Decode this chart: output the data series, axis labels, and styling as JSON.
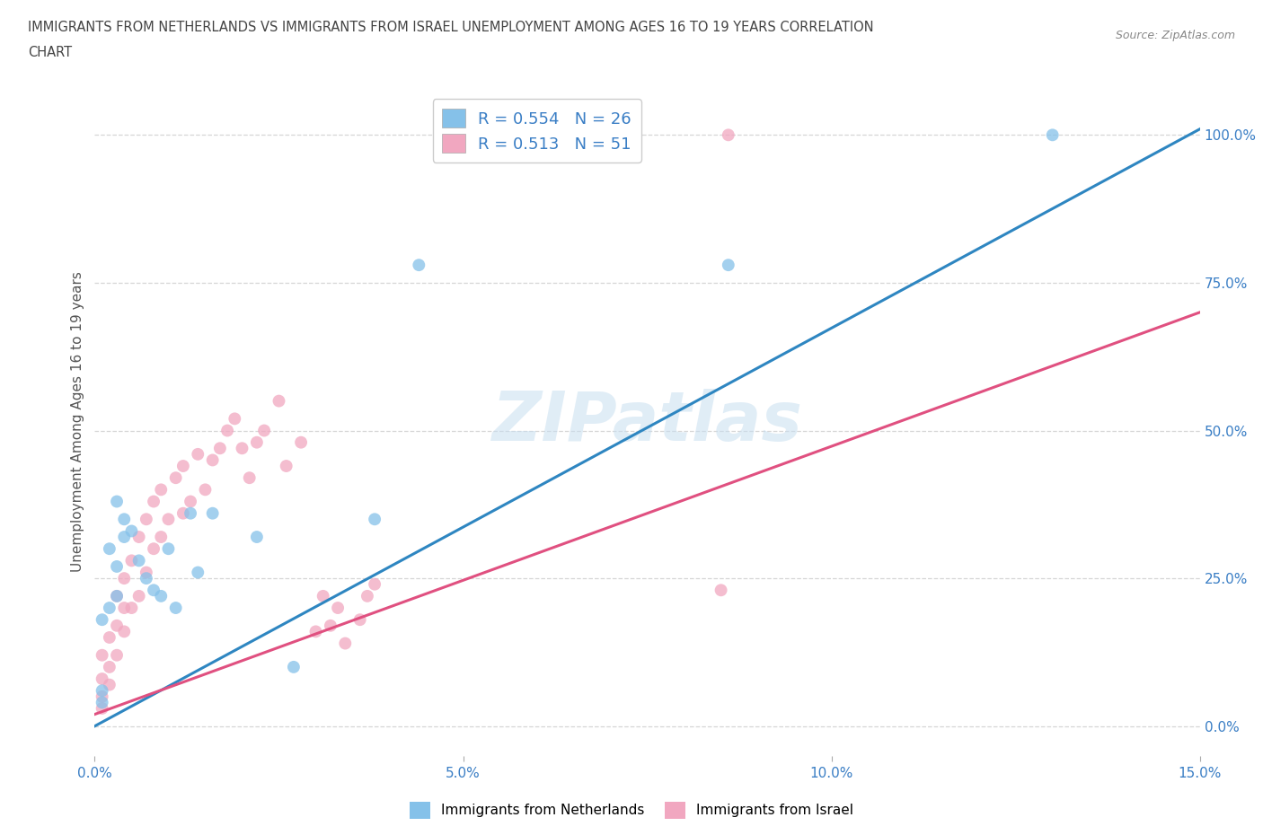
{
  "title_line1": "IMMIGRANTS FROM NETHERLANDS VS IMMIGRANTS FROM ISRAEL UNEMPLOYMENT AMONG AGES 16 TO 19 YEARS CORRELATION",
  "title_line2": "CHART",
  "source": "Source: ZipAtlas.com",
  "ylabel": "Unemployment Among Ages 16 to 19 years",
  "xlim": [
    0.0,
    0.15
  ],
  "ylim": [
    -0.05,
    1.08
  ],
  "xticks": [
    0.0,
    0.05,
    0.1,
    0.15
  ],
  "xtick_labels": [
    "0.0%",
    "5.0%",
    "10.0%",
    "15.0%"
  ],
  "ytick_labels_right": [
    "0.0%",
    "25.0%",
    "50.0%",
    "75.0%",
    "100.0%"
  ],
  "ytick_positions_right": [
    0.0,
    0.25,
    0.5,
    0.75,
    1.0
  ],
  "netherlands_color": "#85C1E9",
  "israel_color": "#F1A7C0",
  "netherlands_line_color": "#2E86C1",
  "israel_line_color": "#E05080",
  "R_netherlands": 0.554,
  "N_netherlands": 26,
  "R_israel": 0.513,
  "N_israel": 51,
  "watermark": "ZIPatlas",
  "background_color": "#ffffff",
  "netherlands_x": [
    0.001,
    0.001,
    0.001,
    0.002,
    0.002,
    0.003,
    0.003,
    0.003,
    0.004,
    0.004,
    0.005,
    0.006,
    0.007,
    0.008,
    0.009,
    0.01,
    0.011,
    0.013,
    0.014,
    0.016,
    0.022,
    0.027,
    0.038,
    0.044,
    0.086,
    0.13
  ],
  "netherlands_y": [
    0.04,
    0.06,
    0.18,
    0.2,
    0.3,
    0.22,
    0.27,
    0.38,
    0.32,
    0.35,
    0.33,
    0.28,
    0.25,
    0.23,
    0.22,
    0.3,
    0.2,
    0.36,
    0.26,
    0.36,
    0.32,
    0.1,
    0.35,
    0.78,
    0.78,
    1.0
  ],
  "israel_x": [
    0.001,
    0.001,
    0.001,
    0.001,
    0.002,
    0.002,
    0.002,
    0.003,
    0.003,
    0.003,
    0.004,
    0.004,
    0.004,
    0.005,
    0.005,
    0.006,
    0.006,
    0.007,
    0.007,
    0.008,
    0.008,
    0.009,
    0.009,
    0.01,
    0.011,
    0.012,
    0.012,
    0.013,
    0.014,
    0.015,
    0.016,
    0.017,
    0.018,
    0.019,
    0.02,
    0.021,
    0.022,
    0.023,
    0.025,
    0.026,
    0.028,
    0.03,
    0.031,
    0.032,
    0.033,
    0.034,
    0.036,
    0.037,
    0.038,
    0.085,
    0.086
  ],
  "israel_y": [
    0.03,
    0.05,
    0.08,
    0.12,
    0.07,
    0.1,
    0.15,
    0.12,
    0.17,
    0.22,
    0.16,
    0.2,
    0.25,
    0.2,
    0.28,
    0.22,
    0.32,
    0.26,
    0.35,
    0.3,
    0.38,
    0.32,
    0.4,
    0.35,
    0.42,
    0.36,
    0.44,
    0.38,
    0.46,
    0.4,
    0.45,
    0.47,
    0.5,
    0.52,
    0.47,
    0.42,
    0.48,
    0.5,
    0.55,
    0.44,
    0.48,
    0.16,
    0.22,
    0.17,
    0.2,
    0.14,
    0.18,
    0.22,
    0.24,
    0.23,
    1.0
  ],
  "neth_line_x": [
    0.0,
    0.15
  ],
  "neth_line_y": [
    0.0,
    1.01
  ],
  "isr_line_x": [
    0.0,
    0.15
  ],
  "isr_line_y": [
    0.02,
    0.7
  ]
}
